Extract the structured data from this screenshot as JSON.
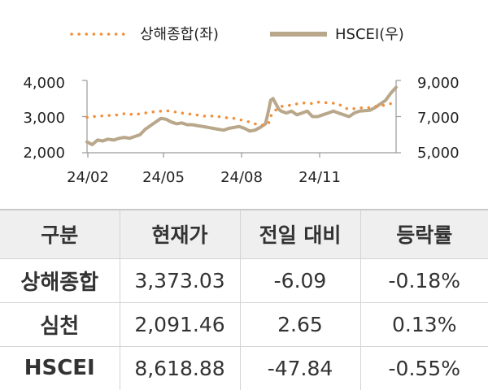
{
  "chart_data": {
    "type": "line",
    "legend": {
      "placement": "top",
      "items": [
        "상해종합(좌)",
        "HSCEI(우)"
      ]
    },
    "x_ticks": [
      "24/02",
      "24/05",
      "24/08",
      "24/11"
    ],
    "y_left": {
      "ticks": [
        "2,000",
        "3,000",
        "4,000"
      ],
      "range": [
        2000,
        4000
      ]
    },
    "y_right": {
      "ticks": [
        "5,000",
        "7,000",
        "9,000"
      ],
      "range": [
        5000,
        9000
      ]
    },
    "grid": false,
    "series": [
      {
        "name": "상해종합(좌)",
        "axis": "left",
        "style": "dotted",
        "x": [
          "2024-01-25",
          "2024-02-01",
          "2024-02-08",
          "2024-02-15",
          "2024-02-22",
          "2024-03-01",
          "2024-03-08",
          "2024-03-15",
          "2024-03-22",
          "2024-03-29",
          "2024-04-05",
          "2024-04-12",
          "2024-04-19",
          "2024-04-26",
          "2024-05-03",
          "2024-05-10",
          "2024-05-17",
          "2024-05-24",
          "2024-05-31",
          "2024-06-07",
          "2024-06-14",
          "2024-06-21",
          "2024-06-28",
          "2024-07-05",
          "2024-07-12",
          "2024-07-19",
          "2024-07-26",
          "2024-08-02",
          "2024-08-09",
          "2024-08-16",
          "2024-08-23",
          "2024-08-30",
          "2024-09-06",
          "2024-09-13",
          "2024-09-20",
          "2024-09-24",
          "2024-09-27",
          "2024-09-30",
          "2024-10-08",
          "2024-10-11",
          "2024-10-18",
          "2024-10-25",
          "2024-11-01",
          "2024-11-08",
          "2024-11-15",
          "2024-11-22",
          "2024-11-29",
          "2024-12-06",
          "2024-12-13",
          "2024-12-20",
          "2024-12-27",
          "2025-01-03",
          "2025-01-10",
          "2025-01-17",
          "2025-01-24",
          "2025-02-07",
          "2025-02-14",
          "2025-02-21",
          "2025-02-28",
          "2025-03-07",
          "2025-03-14"
        ],
        "values": [
          2980,
          3000,
          3010,
          3020,
          3030,
          3040,
          3050,
          3080,
          3070,
          3050,
          3080,
          3100,
          3120,
          3140,
          3150,
          3160,
          3150,
          3120,
          3100,
          3080,
          3060,
          3040,
          3020,
          3000,
          3020,
          3000,
          2980,
          2960,
          2950,
          2920,
          2880,
          2850,
          2800,
          2780,
          2760,
          2800,
          3000,
          3120,
          3250,
          3280,
          3300,
          3320,
          3350,
          3380,
          3370,
          3360,
          3400,
          3390,
          3380,
          3370,
          3350,
          3250,
          3200,
          3220,
          3240,
          3250,
          3280,
          3300,
          3320,
          3360,
          3380
        ]
      },
      {
        "name": "HSCEI(우)",
        "axis": "right",
        "style": "solid",
        "x": [
          "2024-01-25",
          "2024-02-01",
          "2024-02-08",
          "2024-02-15",
          "2024-02-22",
          "2024-03-01",
          "2024-03-08",
          "2024-03-15",
          "2024-03-22",
          "2024-03-29",
          "2024-04-05",
          "2024-04-12",
          "2024-04-19",
          "2024-04-26",
          "2024-05-03",
          "2024-05-10",
          "2024-05-17",
          "2024-05-24",
          "2024-05-31",
          "2024-06-07",
          "2024-06-14",
          "2024-06-21",
          "2024-06-28",
          "2024-07-05",
          "2024-07-12",
          "2024-07-19",
          "2024-07-26",
          "2024-08-02",
          "2024-08-09",
          "2024-08-16",
          "2024-08-23",
          "2024-08-30",
          "2024-09-06",
          "2024-09-13",
          "2024-09-20",
          "2024-09-24",
          "2024-09-27",
          "2024-09-30",
          "2024-10-08",
          "2024-10-11",
          "2024-10-18",
          "2024-10-25",
          "2024-11-01",
          "2024-11-08",
          "2024-11-15",
          "2024-11-22",
          "2024-11-29",
          "2024-12-06",
          "2024-12-13",
          "2024-12-20",
          "2024-12-27",
          "2025-01-03",
          "2025-01-10",
          "2025-01-17",
          "2025-01-24",
          "2025-02-07",
          "2025-02-14",
          "2025-02-21",
          "2025-02-28",
          "2025-03-07",
          "2025-03-14"
        ],
        "values": [
          5600,
          5450,
          5700,
          5650,
          5750,
          5700,
          5800,
          5850,
          5800,
          5900,
          6000,
          6300,
          6500,
          6700,
          6900,
          6850,
          6700,
          6600,
          6650,
          6550,
          6550,
          6500,
          6450,
          6400,
          6350,
          6300,
          6250,
          6350,
          6400,
          6450,
          6350,
          6200,
          6250,
          6400,
          6600,
          7300,
          7900,
          8000,
          7400,
          7300,
          7200,
          7300,
          7100,
          7200,
          7300,
          7000,
          7000,
          7100,
          7200,
          7300,
          7200,
          7100,
          7000,
          7200,
          7300,
          7350,
          7500,
          7700,
          7900,
          8300,
          8620
        ]
      }
    ]
  },
  "table": {
    "headers": [
      "구분",
      "현재가",
      "전일 대비",
      "등락률"
    ],
    "rows": [
      {
        "name": "상해종합",
        "price": "3,373.03",
        "change": "-6.09",
        "pct": "-0.18%"
      },
      {
        "name": "심천",
        "price": "2,091.46",
        "change": "2.65",
        "pct": "0.13%"
      },
      {
        "name": "HSCEI",
        "price": "8,618.88",
        "change": "-47.84",
        "pct": "-0.55%"
      }
    ]
  },
  "colors": {
    "shanghai": "#f0903c",
    "hscei": "#b9a78b",
    "axis": "#9a9a9a"
  }
}
